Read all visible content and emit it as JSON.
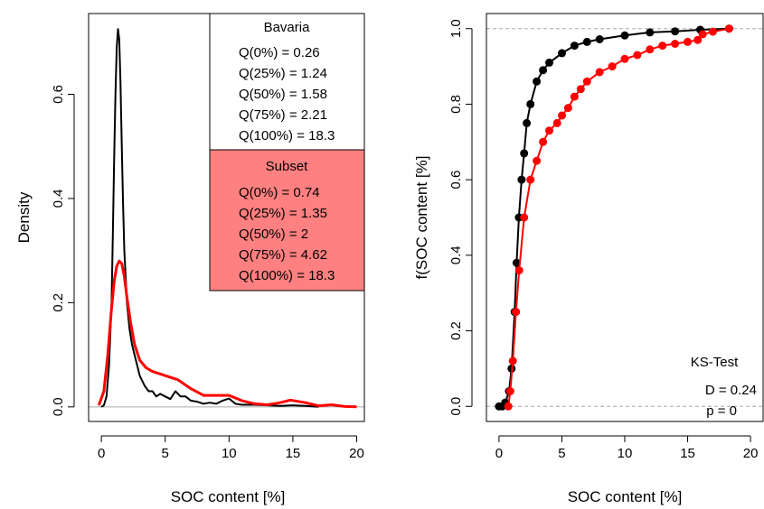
{
  "colors": {
    "bavaria": "#000000",
    "subset": "#ff0000",
    "subset_box": "#ff8080",
    "reference": "#aaaaaa"
  },
  "chart_data": [
    {
      "type": "line",
      "xlabel": "SOC content [%]",
      "ylabel": "Density",
      "xlim": [
        -1.0,
        20.6
      ],
      "ylim": [
        -0.028,
        0.755
      ],
      "x_ticks": [
        "0",
        "5",
        "10",
        "15",
        "20"
      ],
      "y_ticks": [
        "0.0",
        "0.2",
        "0.4",
        "0.6"
      ],
      "grid": false,
      "series": [
        {
          "color": "#000000",
          "x": [
            0,
            0.2,
            0.4,
            0.6,
            0.8,
            0.9,
            1.0,
            1.1,
            1.2,
            1.3,
            1.4,
            1.5,
            1.6,
            1.7,
            1.8,
            2.0,
            2.2,
            2.4,
            2.6,
            2.8,
            3.0,
            3.2,
            3.4,
            3.7,
            4.0,
            4.3,
            4.6,
            5.0,
            5.4,
            5.8,
            6.2,
            6.6,
            7.0,
            7.5,
            8.0,
            8.5,
            9.0,
            9.5,
            10.0,
            10.5,
            11.0,
            12.0,
            13.0,
            14.0,
            15.0,
            16.0,
            17.0
          ],
          "y": [
            0.0,
            0.003,
            0.02,
            0.08,
            0.2,
            0.33,
            0.47,
            0.6,
            0.69,
            0.725,
            0.705,
            0.62,
            0.5,
            0.39,
            0.3,
            0.2,
            0.15,
            0.12,
            0.1,
            0.08,
            0.06,
            0.05,
            0.04,
            0.03,
            0.03,
            0.02,
            0.025,
            0.02,
            0.015,
            0.03,
            0.02,
            0.02,
            0.012,
            0.01,
            0.006,
            0.008,
            0.006,
            0.012,
            0.016,
            0.006,
            0.004,
            0.004,
            0.003,
            0.002,
            0.003,
            0.002,
            0.0
          ]
        },
        {
          "color": "#ff0000",
          "x": [
            -0.2,
            0.2,
            0.5,
            0.8,
            1.0,
            1.2,
            1.4,
            1.6,
            1.8,
            2.0,
            2.3,
            2.6,
            3.0,
            3.5,
            4.0,
            5.0,
            6.0,
            7.0,
            8.0,
            9.0,
            10.0,
            11.0,
            12.0,
            13.0,
            14.0,
            14.8,
            16.0,
            17.0,
            18.0,
            19.0,
            20.0
          ],
          "y": [
            0.003,
            0.03,
            0.1,
            0.19,
            0.24,
            0.27,
            0.28,
            0.275,
            0.25,
            0.21,
            0.16,
            0.12,
            0.09,
            0.075,
            0.068,
            0.06,
            0.052,
            0.035,
            0.022,
            0.022,
            0.022,
            0.012,
            0.006,
            0.004,
            0.008,
            0.013,
            0.008,
            0.002,
            0.004,
            0.001,
            0.0
          ]
        }
      ],
      "legend": {
        "position": "top-right",
        "boxes": [
          {
            "title": "Bavaria",
            "lines": [
              "Q(0%) = 0.26",
              "Q(25%) = 1.24",
              "Q(50%) = 1.58",
              "Q(75%) = 2.21",
              "Q(100%) = 18.3"
            ]
          },
          {
            "title": "Subset",
            "lines": [
              "Q(0%) = 0.74",
              "Q(25%) = 1.35",
              "Q(50%) = 2",
              "Q(75%) = 4.62",
              "Q(100%) = 18.3"
            ]
          }
        ]
      }
    },
    {
      "type": "scatter",
      "xlabel": "SOC content [%]",
      "ylabel": "f(SOC content [%]",
      "xlim": [
        -1.0,
        21.0
      ],
      "ylim": [
        -0.04,
        1.04
      ],
      "x_ticks": [
        "0",
        "5",
        "10",
        "15",
        "20"
      ],
      "y_ticks": [
        "0.0",
        "0.2",
        "0.4",
        "0.6",
        "0.8",
        "1.0"
      ],
      "grid": false,
      "reference_lines_y": [
        0,
        1
      ],
      "series": [
        {
          "color": "#000000",
          "x": [
            0.0,
            0.26,
            0.5,
            0.8,
            1.0,
            1.24,
            1.4,
            1.58,
            1.8,
            2.0,
            2.21,
            2.5,
            3.0,
            3.5,
            4.0,
            5.0,
            6.0,
            7.0,
            8.0,
            10.0,
            12.0,
            14.0,
            16.0,
            18.3
          ],
          "y": [
            0.0,
            0.0,
            0.01,
            0.04,
            0.1,
            0.25,
            0.38,
            0.5,
            0.6,
            0.67,
            0.75,
            0.8,
            0.86,
            0.89,
            0.91,
            0.935,
            0.955,
            0.965,
            0.972,
            0.982,
            0.99,
            0.993,
            0.997,
            1.0
          ]
        },
        {
          "color": "#ff0000",
          "x": [
            0.74,
            0.9,
            1.1,
            1.35,
            1.6,
            2.0,
            2.5,
            3.0,
            3.5,
            4.0,
            4.62,
            5.0,
            5.5,
            6.0,
            6.5,
            7.0,
            8.0,
            9.0,
            10.0,
            11.0,
            12.0,
            13.0,
            14.0,
            15.0,
            15.8,
            16.2,
            17.0,
            18.3
          ],
          "y": [
            0.0,
            0.04,
            0.12,
            0.25,
            0.36,
            0.5,
            0.6,
            0.65,
            0.7,
            0.73,
            0.75,
            0.77,
            0.79,
            0.82,
            0.84,
            0.86,
            0.885,
            0.9,
            0.92,
            0.93,
            0.945,
            0.955,
            0.96,
            0.965,
            0.97,
            0.985,
            0.992,
            1.0
          ]
        }
      ],
      "annotation": {
        "title": "KS-Test",
        "lines": [
          "D = 0.24",
          "p =  0"
        ]
      }
    }
  ]
}
